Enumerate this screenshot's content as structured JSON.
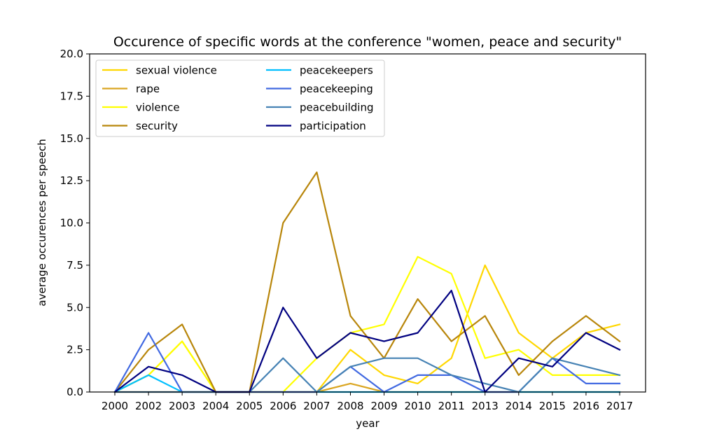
{
  "chart_data": {
    "type": "line",
    "title": "Occurence of specific words at the conference \"women, peace and security\"",
    "xlabel": "year",
    "ylabel": "average occurences per speech",
    "categories": [
      "2000",
      "2002",
      "2003",
      "2004",
      "2005",
      "2006",
      "2007",
      "2008",
      "2009",
      "2010",
      "2011",
      "2013",
      "2014",
      "2015",
      "2016",
      "2017"
    ],
    "ylim": [
      0,
      20
    ],
    "yticks": [
      "0.0",
      "2.5",
      "5.0",
      "7.5",
      "10.0",
      "12.5",
      "15.0",
      "17.5",
      "20.0"
    ],
    "grid": false,
    "legend_position": "top-left",
    "series": [
      {
        "name": "sexual violence",
        "color": "#FFD700",
        "values": [
          0,
          1,
          3,
          0,
          0,
          0,
          0,
          2.5,
          1,
          0.5,
          2,
          7.5,
          3.5,
          2,
          3.5,
          4
        ]
      },
      {
        "name": "rape",
        "color": "#DAA520",
        "values": [
          0,
          0,
          0,
          0,
          0,
          0,
          0,
          0.5,
          0,
          0,
          0,
          0,
          0,
          0,
          0,
          0
        ]
      },
      {
        "name": "violence",
        "color": "#FFFF00",
        "values": [
          0,
          1,
          3,
          0,
          0,
          0,
          2,
          3.5,
          4,
          8,
          7,
          2,
          2.5,
          1,
          1,
          1
        ]
      },
      {
        "name": "security",
        "color": "#B8860B",
        "values": [
          0,
          2.5,
          4,
          0,
          0,
          10,
          13,
          4.5,
          2,
          5.5,
          3,
          4.5,
          1,
          3,
          4.5,
          3
        ]
      },
      {
        "name": "peacekeepers",
        "color": "#00BFFF",
        "values": [
          0,
          1,
          0,
          0,
          0,
          0,
          0,
          0,
          0,
          0,
          0,
          0,
          0,
          0,
          0,
          0
        ]
      },
      {
        "name": "peacekeeping",
        "color": "#4169E1",
        "values": [
          0,
          3.5,
          0,
          0,
          0,
          0,
          0,
          1.5,
          0,
          1,
          1,
          0,
          0,
          2,
          0.5,
          0.5
        ]
      },
      {
        "name": "peacebuilding",
        "color": "#4682B4",
        "values": [
          0,
          0,
          0,
          0,
          0,
          2,
          0,
          1.5,
          2,
          2,
          1,
          0.5,
          0,
          2,
          1.5,
          1
        ]
      },
      {
        "name": "participation",
        "color": "#000080",
        "values": [
          0,
          1.5,
          1,
          0,
          0,
          5,
          2,
          3.5,
          3,
          3.5,
          6,
          0,
          2,
          1.5,
          3.5,
          2.5
        ]
      }
    ]
  }
}
